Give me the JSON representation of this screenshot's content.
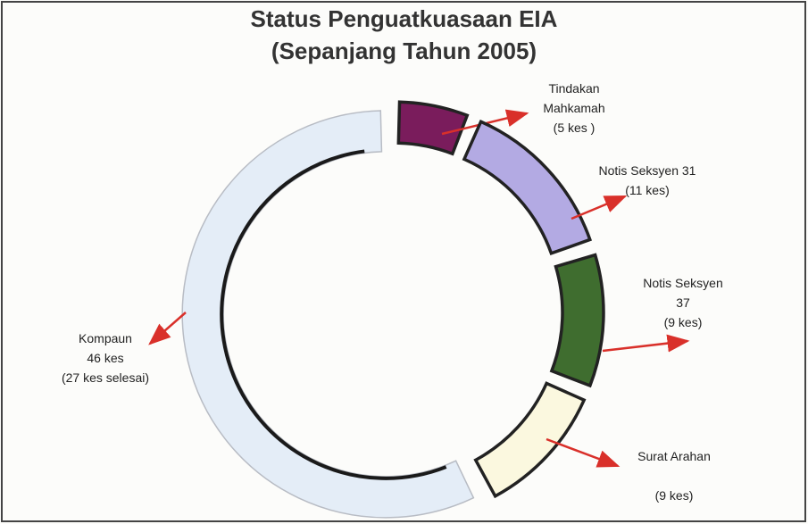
{
  "chart_data": {
    "type": "donut",
    "title": "Status Penguatkuasaan EIA",
    "subtitle": "(Sepanjang Tahun 2005)",
    "categories": [
      "Tindakan Mahkamah",
      "Notis Seksyen 31",
      "Notis Seksyen 37",
      "Surat Arahan",
      "Kompaun"
    ],
    "values": [
      5,
      11,
      9,
      9,
      46
    ],
    "value_labels": [
      "(5 kes )",
      "(11 kes)",
      "(9 kes)",
      "(9 kes)",
      "46 kes"
    ],
    "colors": [
      "#7a1c5c",
      "#b3aae3",
      "#3f6d2f",
      "#fbf8df",
      "#e4edf7"
    ],
    "annotation": "(27 kes selesai)"
  }
}
